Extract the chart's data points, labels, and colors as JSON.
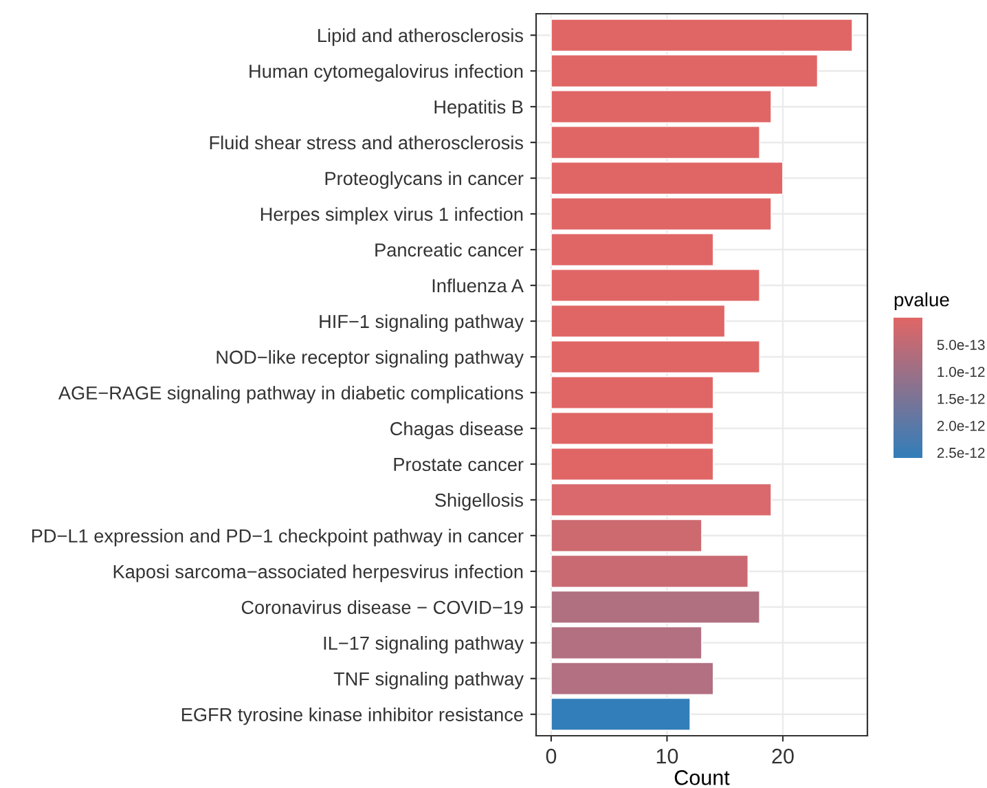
{
  "chart_data": {
    "type": "bar",
    "orientation": "horizontal",
    "xlabel": "Count",
    "clabel": "pvalue",
    "categories": [
      "Lipid and atherosclerosis",
      "Human cytomegalovirus infection",
      "Hepatitis B",
      "Fluid shear stress and atherosclerosis",
      "Proteoglycans in cancer",
      "Herpes simplex virus 1 infection",
      "Pancreatic cancer",
      "Influenza A",
      "HIF−1 signaling pathway",
      "NOD−like receptor signaling pathway",
      "AGE−RAGE signaling pathway in diabetic complications",
      "Chagas disease",
      "Prostate cancer",
      "Shigellosis",
      "PD−L1 expression and PD−1 checkpoint pathway in cancer",
      "Kaposi sarcoma−associated herpesvirus infection",
      "Coronavirus disease − COVID−19",
      "IL−17 signaling pathway",
      "TNF signaling pathway",
      "EGFR tyrosine kinase inhibitor resistance"
    ],
    "values": [
      26,
      23,
      19,
      18,
      20,
      19,
      14,
      18,
      15,
      18,
      14,
      14,
      14,
      19,
      13,
      17,
      18,
      13,
      14,
      12
    ],
    "colors": [
      "#e06666",
      "#e06666",
      "#e06666",
      "#e06666",
      "#e06666",
      "#e06666",
      "#e06666",
      "#e06666",
      "#e06666",
      "#e06666",
      "#e06666",
      "#e06666",
      "#e06666",
      "#d9696c",
      "#cc6a70",
      "#c96a72",
      "#b07080",
      "#b27080",
      "#b27082",
      "#327eba"
    ],
    "xlim": [
      -1.3,
      27.3
    ],
    "xticks": [
      0,
      10,
      20
    ],
    "grid": true,
    "clim": [
      0,
      2.6e-12
    ],
    "cticks": [
      {
        "value": 5e-13,
        "label": "5.0e-13"
      },
      {
        "value": 1e-12,
        "label": "1.0e-12"
      },
      {
        "value": 1.5e-12,
        "label": "1.5e-12"
      },
      {
        "value": 2e-12,
        "label": "2.0e-12"
      },
      {
        "value": 2.5e-12,
        "label": "2.5e-12"
      }
    ]
  }
}
